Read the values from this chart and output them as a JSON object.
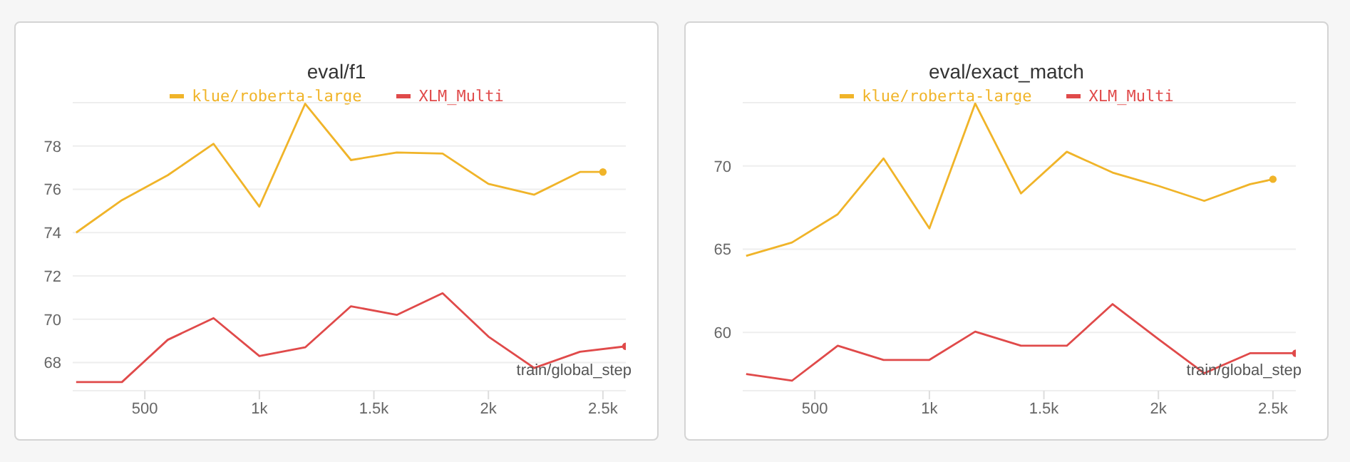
{
  "chart_data": [
    {
      "type": "line",
      "title": "eval/f1",
      "xlabel": "train/global_step",
      "xlim": [
        185,
        2600
      ],
      "ylim": [
        66.7,
        80
      ],
      "yticks": [
        68,
        70,
        72,
        74,
        76,
        78
      ],
      "xticks": [
        500,
        {
          "value": 1000,
          "label": "1k"
        },
        {
          "value": 1500,
          "label": "1.5k"
        },
        {
          "value": 2000,
          "label": "2k"
        },
        {
          "value": 2500,
          "label": "2.5k"
        }
      ],
      "grid": "y",
      "legend": "top",
      "marker": "none",
      "line_style": "solid",
      "series": [
        {
          "name": "klue/roberta-large",
          "color": "#f0b429",
          "x": [
            200,
            400,
            600,
            800,
            1000,
            1200,
            1400,
            1600,
            1800,
            2000,
            2200,
            2400,
            2500
          ],
          "values": [
            74.0,
            75.5,
            76.65,
            78.1,
            75.2,
            79.95,
            77.35,
            77.7,
            77.65,
            76.25,
            75.75,
            76.8,
            76.8
          ]
        },
        {
          "name": "XLM_Multi",
          "color": "#e04a4a",
          "x": [
            200,
            400,
            600,
            800,
            1000,
            1200,
            1400,
            1600,
            1800,
            2000,
            2200,
            2400,
            2600
          ],
          "values": [
            67.1,
            67.1,
            69.05,
            70.05,
            68.3,
            68.7,
            70.6,
            70.2,
            71.2,
            69.2,
            67.75,
            68.5,
            68.75
          ]
        }
      ]
    },
    {
      "type": "line",
      "title": "eval/exact_match",
      "xlabel": "train/global_step",
      "xlim": [
        185,
        2600
      ],
      "ylim": [
        56.5,
        73.8
      ],
      "yticks": [
        60,
        65,
        70
      ],
      "xticks": [
        500,
        {
          "value": 1000,
          "label": "1k"
        },
        {
          "value": 1500,
          "label": "1.5k"
        },
        {
          "value": 2000,
          "label": "2k"
        },
        {
          "value": 2500,
          "label": "2.5k"
        }
      ],
      "grid": "y",
      "legend": "top",
      "marker": "none",
      "line_style": "solid",
      "series": [
        {
          "name": "klue/roberta-large",
          "color": "#f0b429",
          "x": [
            200,
            400,
            600,
            800,
            1000,
            1200,
            1400,
            1600,
            1800,
            2000,
            2200,
            2400,
            2500
          ],
          "values": [
            64.6,
            65.4,
            67.1,
            70.45,
            66.25,
            73.75,
            68.35,
            70.85,
            69.6,
            68.8,
            67.9,
            68.9,
            69.2
          ]
        },
        {
          "name": "XLM_Multi",
          "color": "#e04a4a",
          "x": [
            200,
            400,
            600,
            800,
            1000,
            1200,
            1400,
            1600,
            1800,
            2000,
            2200,
            2400,
            2600
          ],
          "values": [
            57.5,
            57.1,
            59.2,
            58.35,
            58.35,
            60.05,
            59.2,
            59.2,
            61.7,
            59.6,
            57.55,
            58.75,
            58.75
          ]
        }
      ]
    }
  ]
}
